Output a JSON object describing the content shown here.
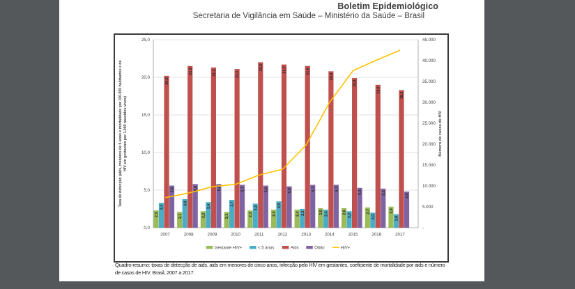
{
  "page": {
    "title": "Boletim Epidemiológico",
    "subtitle": "Secretaria de Vigilância em Saúde – Ministério da Saúde – Brasil",
    "caption_line1": "Quadro-resumo: taxas de detecção de aids, aids em menores de cinco anos, infecção pelo HIV em gestantes, coeficiente de mortalidade por aids e número",
    "caption_line2": "de casos de HIV. Brasil, 2007 a 2017."
  },
  "chart_data": {
    "type": "bar",
    "categories": [
      "2007",
      "2008",
      "2009",
      "2010",
      "2011",
      "2012",
      "2013",
      "2014",
      "2015",
      "2016",
      "2017"
    ],
    "series": [
      {
        "name": "Gestante HIV+",
        "type": "bar",
        "color": "#9BBB59",
        "values": [
          2.3,
          2.1,
          2.2,
          2.1,
          2.3,
          2.4,
          2.4,
          2.6,
          2.6,
          2.7,
          2.8
        ]
      },
      {
        "name": "< 5 anos",
        "type": "bar",
        "color": "#4BACC6",
        "values": [
          3.3,
          3.8,
          3.4,
          3.7,
          3.2,
          3.5,
          2.5,
          2.4,
          2.2,
          2.0,
          1.8
        ]
      },
      {
        "name": "Aids",
        "type": "bar",
        "color": "#C0504D",
        "values": [
          20.2,
          21.5,
          21.3,
          21.1,
          22.0,
          21.7,
          21.5,
          20.8,
          19.9,
          19.0,
          18.3
        ]
      },
      {
        "name": "Óbito",
        "type": "bar",
        "color": "#8064A2",
        "values": [
          5.6,
          5.8,
          5.8,
          5.7,
          5.6,
          5.5,
          5.7,
          5.7,
          5.3,
          5.2,
          4.8
        ]
      },
      {
        "name": "HIV+",
        "type": "line",
        "color": "#FFC000",
        "axis": "right",
        "values": [
          7200,
          8300,
          9800,
          10400,
          12600,
          14000,
          19800,
          30000,
          37600,
          40100,
          42500
        ]
      }
    ],
    "left_axis": {
      "title_line1": "Taxa de detecção (aids, menores de 5 anos e mortalidade por 100.000 habitantes e de",
      "title_line2": "HIV em gestantes por 1.000 nascidos vivos)",
      "ticks": [
        "25,0",
        "20,0",
        "15,0",
        "10,0",
        "5,0",
        "0,0"
      ],
      "min": 0,
      "max": 25,
      "step": 5
    },
    "right_axis": {
      "title": "Número de casos de HIV",
      "ticks": [
        "45.000",
        "40.000",
        "35.000",
        "30.000",
        "25.000",
        "20.000",
        "15.000",
        "10.000",
        "5.000",
        "-"
      ],
      "min": 0,
      "max": 45000,
      "step": 5000
    },
    "legend_position": "bottom",
    "grid": true,
    "value_label_decimal": "comma"
  },
  "colors": {
    "background": "#54585a",
    "page": "#ffffff",
    "frame_border": "#3a3a3a",
    "grid_line": "#d9d9d9",
    "axis_line": "#9a9a9a",
    "tick_text": "#404040",
    "bar_label_text": "#262626"
  }
}
